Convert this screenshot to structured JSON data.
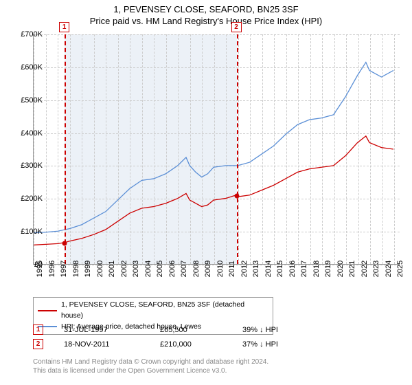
{
  "title": "1, PEVENSEY CLOSE, SEAFORD, BN25 3SF",
  "subtitle": "Price paid vs. HM Land Registry's House Price Index (HPI)",
  "chart": {
    "type": "line",
    "x_range": [
      1995,
      2025.5
    ],
    "y_range": [
      0,
      700000
    ],
    "y_ticks": [
      0,
      100000,
      200000,
      300000,
      400000,
      500000,
      600000,
      700000
    ],
    "y_tick_labels": [
      "£0",
      "£100K",
      "£200K",
      "£300K",
      "£400K",
      "£500K",
      "£600K",
      "£700K"
    ],
    "x_ticks": [
      1995,
      1996,
      1997,
      1998,
      1999,
      2000,
      2001,
      2002,
      2003,
      2004,
      2005,
      2006,
      2007,
      2008,
      2009,
      2010,
      2011,
      2012,
      2013,
      2014,
      2015,
      2016,
      2017,
      2018,
      2019,
      2020,
      2021,
      2022,
      2023,
      2024,
      2025
    ],
    "grid_color": "#cccccc",
    "axis_color": "#999999",
    "shaded_region": {
      "x_start": 1997.58,
      "x_end": 2011.88,
      "color": "#dfe8f2"
    },
    "series": [
      {
        "name": "property",
        "label": "1, PEVENSEY CLOSE, SEAFORD, BN25 3SF (detached house)",
        "color": "#cc0000",
        "line_width": 1.3,
        "data": [
          [
            1995,
            58000
          ],
          [
            1996,
            60000
          ],
          [
            1997,
            62000
          ],
          [
            1997.58,
            65500
          ],
          [
            1998,
            70000
          ],
          [
            1999,
            78000
          ],
          [
            2000,
            90000
          ],
          [
            2001,
            105000
          ],
          [
            2002,
            130000
          ],
          [
            2003,
            155000
          ],
          [
            2004,
            170000
          ],
          [
            2005,
            175000
          ],
          [
            2006,
            185000
          ],
          [
            2007,
            200000
          ],
          [
            2007.7,
            215000
          ],
          [
            2008,
            195000
          ],
          [
            2008.5,
            185000
          ],
          [
            2009,
            175000
          ],
          [
            2009.5,
            180000
          ],
          [
            2010,
            195000
          ],
          [
            2011,
            200000
          ],
          [
            2011.88,
            210000
          ],
          [
            2012,
            205000
          ],
          [
            2013,
            210000
          ],
          [
            2014,
            225000
          ],
          [
            2015,
            240000
          ],
          [
            2016,
            260000
          ],
          [
            2017,
            280000
          ],
          [
            2018,
            290000
          ],
          [
            2019,
            295000
          ],
          [
            2020,
            300000
          ],
          [
            2021,
            330000
          ],
          [
            2022,
            370000
          ],
          [
            2022.7,
            390000
          ],
          [
            2023,
            370000
          ],
          [
            2024,
            355000
          ],
          [
            2025,
            350000
          ]
        ]
      },
      {
        "name": "hpi",
        "label": "HPI: Average price, detached house, Lewes",
        "color": "#5b8fd6",
        "line_width": 1.3,
        "data": [
          [
            1995,
            95000
          ],
          [
            1996,
            97000
          ],
          [
            1997,
            100000
          ],
          [
            1998,
            108000
          ],
          [
            1999,
            120000
          ],
          [
            2000,
            140000
          ],
          [
            2001,
            160000
          ],
          [
            2002,
            195000
          ],
          [
            2003,
            230000
          ],
          [
            2004,
            255000
          ],
          [
            2005,
            260000
          ],
          [
            2006,
            275000
          ],
          [
            2007,
            300000
          ],
          [
            2007.7,
            325000
          ],
          [
            2008,
            300000
          ],
          [
            2008.5,
            280000
          ],
          [
            2009,
            265000
          ],
          [
            2009.5,
            275000
          ],
          [
            2010,
            295000
          ],
          [
            2011,
            300000
          ],
          [
            2012,
            300000
          ],
          [
            2013,
            310000
          ],
          [
            2014,
            335000
          ],
          [
            2015,
            360000
          ],
          [
            2016,
            395000
          ],
          [
            2017,
            425000
          ],
          [
            2018,
            440000
          ],
          [
            2019,
            445000
          ],
          [
            2020,
            455000
          ],
          [
            2021,
            510000
          ],
          [
            2022,
            575000
          ],
          [
            2022.7,
            615000
          ],
          [
            2023,
            590000
          ],
          [
            2024,
            570000
          ],
          [
            2025,
            590000
          ]
        ]
      }
    ],
    "markers": [
      {
        "num": "1",
        "x": 1997.58,
        "y": 65500,
        "color": "#cc0000"
      },
      {
        "num": "2",
        "x": 2011.88,
        "y": 210000,
        "color": "#cc0000"
      }
    ]
  },
  "transactions": [
    {
      "num": "1",
      "date": "31-JUL-1997",
      "price": "£65,500",
      "delta": "39% ↓ HPI",
      "color": "#cc0000"
    },
    {
      "num": "2",
      "date": "18-NOV-2011",
      "price": "£210,000",
      "delta": "37% ↓ HPI",
      "color": "#cc0000"
    }
  ],
  "footnote_line1": "Contains HM Land Registry data © Crown copyright and database right 2024.",
  "footnote_line2": "This data is licensed under the Open Government Licence v3.0.",
  "fonts": {
    "title_size": 13,
    "axis_size": 11,
    "legend_size": 10.5,
    "foot_size": 10
  },
  "colors": {
    "bg": "#ffffff",
    "text": "#000000",
    "foot": "#888888"
  }
}
